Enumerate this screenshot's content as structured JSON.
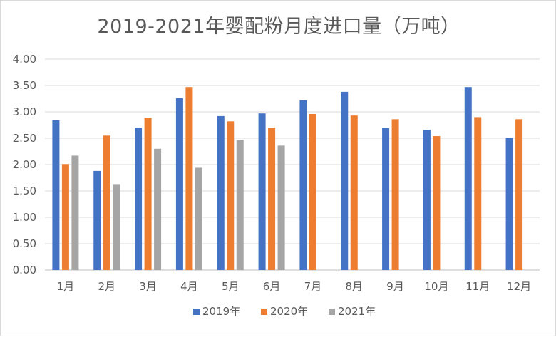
{
  "chart_data": {
    "type": "bar",
    "title": "2019-2021年婴配粉月度进口量（万吨）",
    "xlabel": "",
    "ylabel": "",
    "ylim": [
      0,
      4
    ],
    "yticks": [
      "0.00",
      "0.50",
      "1.00",
      "1.50",
      "2.00",
      "2.50",
      "3.00",
      "3.50",
      "4.00"
    ],
    "grid": true,
    "legend_position": "bottom",
    "categories": [
      "1月",
      "2月",
      "3月",
      "4月",
      "5月",
      "6月",
      "7月",
      "8月",
      "9月",
      "10月",
      "11月",
      "12月"
    ],
    "series": [
      {
        "name": "2019年",
        "color": "#4472c4",
        "values": [
          2.84,
          1.88,
          2.7,
          3.26,
          2.92,
          2.97,
          3.22,
          3.38,
          2.69,
          2.66,
          3.47,
          2.51
        ]
      },
      {
        "name": "2020年",
        "color": "#ed7d31",
        "values": [
          2.01,
          2.55,
          2.89,
          3.47,
          2.82,
          2.7,
          2.96,
          2.93,
          2.86,
          2.54,
          2.9,
          2.86
        ]
      },
      {
        "name": "2021年",
        "color": "#a5a5a5",
        "values": [
          2.17,
          1.63,
          2.3,
          1.94,
          2.47,
          2.36,
          null,
          null,
          null,
          null,
          null,
          null
        ]
      }
    ]
  }
}
